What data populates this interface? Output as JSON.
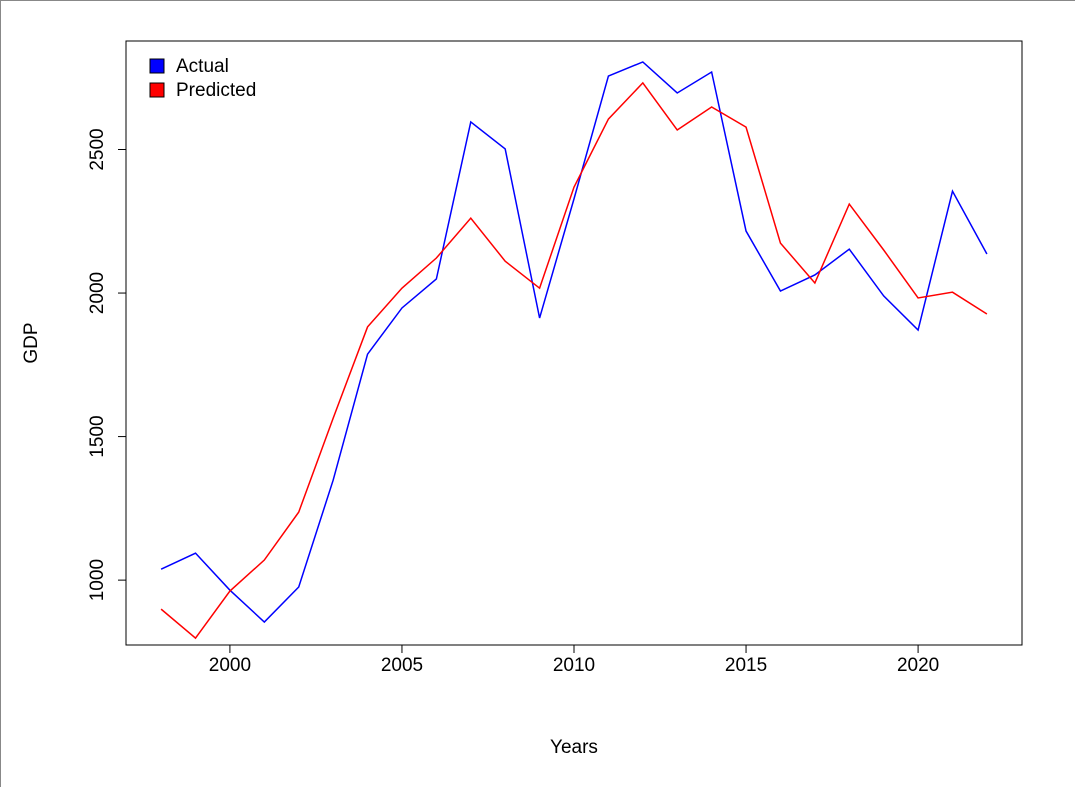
{
  "chart_data": {
    "type": "line",
    "xlabel": "Years",
    "ylabel": "GDP",
    "x": [
      1998,
      1999,
      2000,
      2001,
      2002,
      2003,
      2004,
      2005,
      2006,
      2007,
      2008,
      2009,
      2010,
      2011,
      2012,
      2013,
      2014,
      2015,
      2016,
      2017,
      2018,
      2019,
      2020,
      2021,
      2022
    ],
    "series": [
      {
        "name": "Actual",
        "color": "#0000ff",
        "values": [
          1038,
          1094,
          965,
          854,
          976,
          1348,
          1787,
          1948,
          2049,
          2596,
          2502,
          1913,
          2328,
          2756,
          2805,
          2697,
          2770,
          2216,
          2007,
          2063,
          2153,
          1990,
          1871,
          2355,
          2136
        ]
      },
      {
        "name": "Predicted",
        "color": "#ff0000",
        "values": [
          899,
          798,
          962,
          1070,
          1237,
          1564,
          1882,
          2017,
          2122,
          2261,
          2111,
          2017,
          2369,
          2606,
          2732,
          2568,
          2648,
          2578,
          2174,
          2035,
          2310,
          2150,
          1983,
          2003,
          1927
        ]
      }
    ],
    "xlim": [
      1996.98,
      2023.02
    ],
    "xticks": [
      2000,
      2005,
      2010,
      2015,
      2020
    ],
    "ylim": [
      774,
      2878
    ],
    "yticks": [
      1000,
      1500,
      2000,
      2500
    ],
    "legend": "top-left",
    "grid": false
  }
}
